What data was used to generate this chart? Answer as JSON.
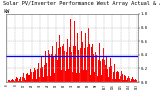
{
  "title_line1": "Solar PV/Inverter Performance West Array Actual & Average Power Output",
  "title_line2": "kW                  ---",
  "title_fontsize": 3.8,
  "background_color": "#ffffff",
  "plot_bg_color": "#ffffff",
  "grid_color": "#aaaaaa",
  "bar_color": "#ff0000",
  "avg_line_color": "#0000ff",
  "avg_line_value": 0.38,
  "ylim": [
    0,
    1.0
  ],
  "num_bars": 144,
  "num_days": 31,
  "ytick_labels": [
    "0.0",
    "0.2",
    "0.4",
    "0.6",
    "0.8",
    "1.0"
  ],
  "ytick_vals": [
    0.0,
    0.2,
    0.4,
    0.6,
    0.8,
    1.0
  ]
}
